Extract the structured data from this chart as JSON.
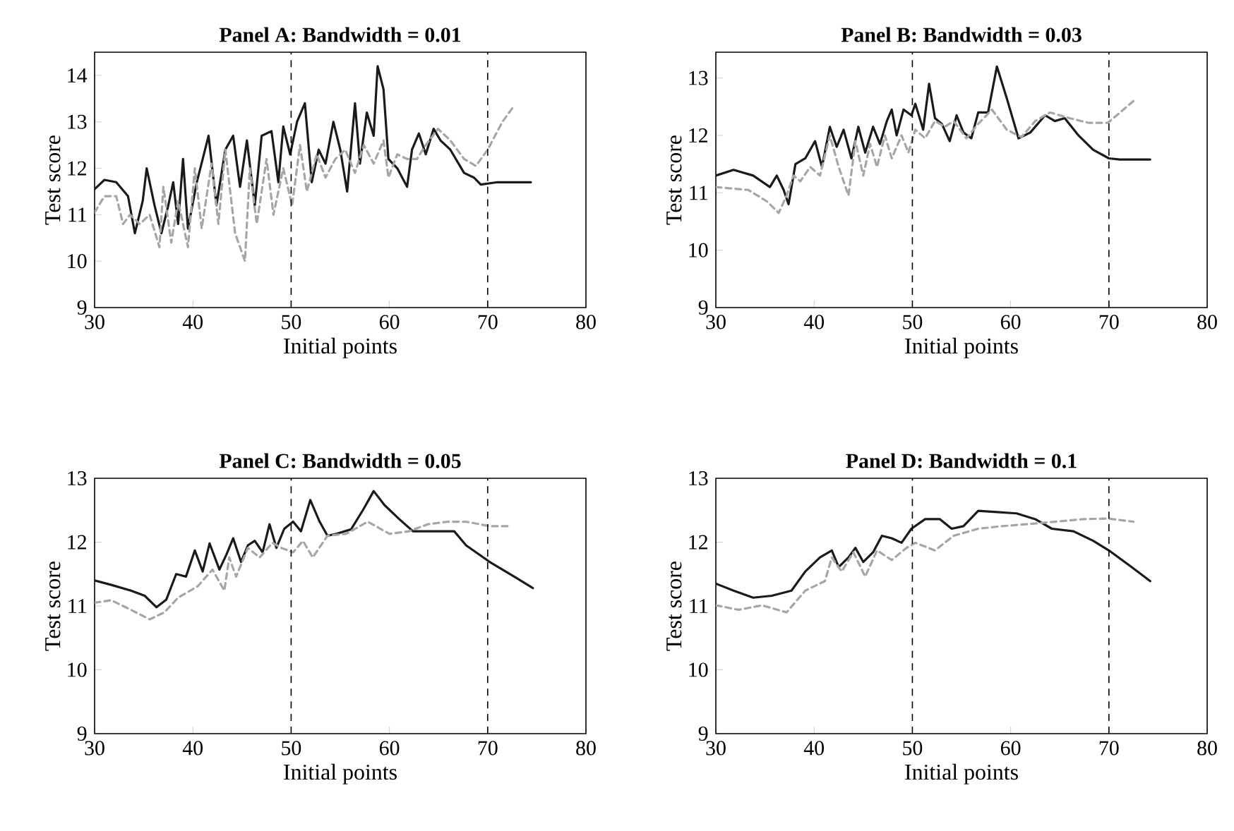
{
  "chart_data": [
    {
      "type": "line",
      "title": "Panel A: Bandwidth = 0.01",
      "xlabel": "Initial points",
      "ylabel": "Test score",
      "xlim": [
        30,
        80
      ],
      "ylim": [
        9,
        14.5
      ],
      "xticks": [
        30,
        40,
        50,
        60,
        70,
        80
      ],
      "yticks": [
        9,
        10,
        11,
        12,
        13,
        14
      ],
      "ref_lines": [
        {
          "axis": "x",
          "value": 50,
          "line_style": "dashed"
        },
        {
          "axis": "x",
          "value": 70,
          "line_style": "dashed"
        }
      ],
      "series": [
        {
          "color": "#1a1a1a",
          "line_style": "solid",
          "x": [
            30,
            31,
            32.2,
            33.4,
            34.1,
            34.9,
            35.3,
            36.1,
            36.8,
            37.5,
            38,
            38.5,
            39,
            39.5,
            40.4,
            41.6,
            42.4,
            43.3,
            44.1,
            44.8,
            45.5,
            46.3,
            47,
            48,
            48.7,
            49.2,
            49.9,
            50.6,
            51.4,
            52.1,
            52.8,
            53.5,
            54.3,
            55,
            55.7,
            56.5,
            57,
            57.7,
            58.4,
            58.8,
            59.4,
            59.9,
            60.8,
            61.8,
            62.3,
            63,
            63.7,
            64.5,
            65.2,
            66.2,
            67.6,
            68.6,
            69.3,
            71,
            74.4
          ],
          "values": [
            11.55,
            11.75,
            11.7,
            11.4,
            10.6,
            11.3,
            12.0,
            11.2,
            10.6,
            11.2,
            11.7,
            10.8,
            12.2,
            10.7,
            11.7,
            12.7,
            11.2,
            12.4,
            12.7,
            11.6,
            12.6,
            11.2,
            12.7,
            12.8,
            11.7,
            12.9,
            12.3,
            13.0,
            13.4,
            11.7,
            12.4,
            12.1,
            13.0,
            12.4,
            11.5,
            13.4,
            12.1,
            13.2,
            12.7,
            14.2,
            13.7,
            12.2,
            12.0,
            11.6,
            12.4,
            12.75,
            12.3,
            12.85,
            12.6,
            12.4,
            11.9,
            11.8,
            11.65,
            11.7,
            11.7
          ]
        },
        {
          "color": "#a6a6a6",
          "line_style": "dashed",
          "x": [
            30,
            31,
            32.2,
            32.9,
            33.6,
            34.6,
            35.6,
            36.6,
            37,
            37.8,
            38.5,
            39.5,
            40.2,
            40.9,
            41.9,
            42.6,
            43.3,
            44.3,
            45.3,
            45.8,
            46.5,
            47.5,
            48.2,
            49.2,
            50.1,
            50.9,
            51.6,
            52.6,
            53.5,
            54.5,
            55.5,
            56.5,
            57.4,
            58.4,
            59.4,
            59.9,
            60.8,
            61.8,
            62.8,
            63.7,
            64.95,
            66.2,
            67.6,
            68.8,
            70,
            71.5,
            72.7
          ],
          "values": [
            11.05,
            11.4,
            11.4,
            10.8,
            11.0,
            10.8,
            11.0,
            10.3,
            11.6,
            10.4,
            11.3,
            10.3,
            12.0,
            10.7,
            12.1,
            10.8,
            12.4,
            10.6,
            10.0,
            12.0,
            10.8,
            12.2,
            11.0,
            12.0,
            11.2,
            12.5,
            11.5,
            12.3,
            11.8,
            12.2,
            12.4,
            11.9,
            12.5,
            12.1,
            12.6,
            11.8,
            12.3,
            12.2,
            12.2,
            12.5,
            12.85,
            12.6,
            12.2,
            12.05,
            12.4,
            13.0,
            13.35
          ]
        }
      ]
    },
    {
      "type": "line",
      "title": "Panel B: Bandwidth = 0.03",
      "xlabel": "Initial points",
      "ylabel": "Test score",
      "xlim": [
        30,
        80
      ],
      "ylim": [
        9,
        13.45
      ],
      "xticks": [
        30,
        40,
        50,
        60,
        70,
        80
      ],
      "yticks": [
        9,
        10,
        11,
        12,
        13
      ],
      "ref_lines": [
        {
          "axis": "x",
          "value": 50,
          "line_style": "dashed"
        },
        {
          "axis": "x",
          "value": 70,
          "line_style": "dashed"
        }
      ],
      "series": [
        {
          "color": "#1a1a1a",
          "line_style": "solid",
          "x": [
            30,
            31.8,
            33.8,
            35.5,
            36.2,
            36.9,
            37.4,
            38.1,
            39.1,
            40.1,
            40.8,
            41.6,
            42.3,
            43,
            43.8,
            44.5,
            45.2,
            46,
            46.7,
            47.4,
            47.9,
            48.4,
            49.1,
            49.9,
            50.3,
            51.1,
            51.7,
            52.3,
            53,
            53.8,
            54.5,
            55.2,
            56,
            56.7,
            57.7,
            58.6,
            59.6,
            60.8,
            62,
            63.5,
            64.5,
            65.5,
            66.9,
            68.4,
            70,
            71.1,
            74.2
          ],
          "values": [
            11.3,
            11.4,
            11.3,
            11.1,
            11.3,
            11.05,
            10.8,
            11.5,
            11.6,
            11.9,
            11.45,
            12.15,
            11.8,
            12.1,
            11.6,
            12.15,
            11.7,
            12.15,
            11.85,
            12.25,
            12.45,
            12.0,
            12.45,
            12.35,
            12.55,
            12.1,
            12.9,
            12.3,
            12.2,
            11.9,
            12.35,
            12.05,
            11.95,
            12.4,
            12.4,
            13.2,
            12.65,
            11.95,
            12.05,
            12.35,
            12.25,
            12.3,
            12.0,
            11.75,
            11.6,
            11.58,
            11.58
          ]
        },
        {
          "color": "#a6a6a6",
          "line_style": "dashed",
          "x": [
            30,
            33.3,
            35.2,
            36.4,
            37.2,
            37.9,
            38.6,
            39.6,
            40.6,
            41.6,
            42.5,
            43.5,
            44.2,
            45,
            45.7,
            46.4,
            47.2,
            47.9,
            48.9,
            49.6,
            50.3,
            51.3,
            52.3,
            53.3,
            54.2,
            55.5,
            56.7,
            58.1,
            59.6,
            61.1,
            62.5,
            64,
            66,
            67.9,
            69.9,
            70.8,
            72.5
          ],
          "values": [
            11.1,
            11.05,
            10.85,
            10.65,
            10.95,
            11.3,
            11.2,
            11.45,
            11.3,
            12.0,
            11.45,
            10.95,
            11.9,
            11.3,
            11.85,
            11.45,
            12.0,
            11.6,
            12.0,
            11.7,
            12.1,
            11.95,
            12.25,
            12.15,
            12.25,
            11.95,
            12.2,
            12.45,
            12.1,
            11.97,
            12.25,
            12.4,
            12.3,
            12.22,
            12.22,
            12.35,
            12.6
          ]
        }
      ]
    },
    {
      "type": "line",
      "title": "Panel C: Bandwidth = 0.05",
      "xlabel": "Initial points",
      "ylabel": "Test score",
      "xlim": [
        30,
        80
      ],
      "ylim": [
        9,
        13
      ],
      "xticks": [
        30,
        40,
        50,
        60,
        70,
        80
      ],
      "yticks": [
        9,
        10,
        11,
        12,
        13
      ],
      "ref_lines": [
        {
          "axis": "x",
          "value": 50,
          "line_style": "dashed"
        },
        {
          "axis": "x",
          "value": 70,
          "line_style": "dashed"
        }
      ],
      "series": [
        {
          "color": "#1a1a1a",
          "line_style": "solid",
          "x": [
            30,
            31.7,
            33.7,
            35.1,
            36.3,
            37.3,
            38.3,
            39.3,
            40.2,
            41,
            41.7,
            42.7,
            43.4,
            44.1,
            44.9,
            45.6,
            46.3,
            47.1,
            47.8,
            48.5,
            49.3,
            50.2,
            51,
            51.95,
            52.9,
            53.7,
            54.6,
            56.1,
            57.3,
            58.4,
            59.5,
            61,
            62.4,
            63.9,
            66.6,
            67.8,
            70.2,
            72.7,
            74.6
          ],
          "values": [
            11.4,
            11.33,
            11.24,
            11.16,
            10.98,
            11.1,
            11.5,
            11.46,
            11.87,
            11.54,
            11.98,
            11.57,
            11.8,
            12.06,
            11.69,
            11.95,
            12.02,
            11.84,
            12.28,
            11.91,
            12.21,
            12.32,
            12.17,
            12.66,
            12.32,
            12.1,
            12.13,
            12.2,
            12.5,
            12.8,
            12.58,
            12.36,
            12.17,
            12.17,
            12.17,
            11.95,
            11.69,
            11.46,
            11.28
          ]
        },
        {
          "color": "#a6a6a6",
          "line_style": "dashed",
          "x": [
            30,
            31.7,
            33.7,
            35.6,
            37.1,
            38.5,
            40.5,
            42,
            43.2,
            43.7,
            44.4,
            45.6,
            46.8,
            48.1,
            49,
            50.2,
            51.2,
            52.2,
            53.7,
            55.6,
            57.8,
            60,
            62,
            63.9,
            65.9,
            67.8,
            70.2,
            72.4
          ],
          "values": [
            11.05,
            11.09,
            10.94,
            10.79,
            10.9,
            11.13,
            11.31,
            11.57,
            11.24,
            11.76,
            11.46,
            11.91,
            11.76,
            11.99,
            11.91,
            11.84,
            12.02,
            11.76,
            12.1,
            12.13,
            12.32,
            12.13,
            12.17,
            12.28,
            12.32,
            12.32,
            12.25,
            12.25
          ]
        }
      ]
    },
    {
      "type": "line",
      "title": "Panel D: Bandwidth = 0.1",
      "xlabel": "Initial points",
      "ylabel": "Test score",
      "xlim": [
        30,
        80
      ],
      "ylim": [
        9,
        13
      ],
      "xticks": [
        30,
        40,
        50,
        60,
        70,
        80
      ],
      "yticks": [
        9,
        10,
        11,
        12,
        13
      ],
      "ref_lines": [
        {
          "axis": "x",
          "value": 50,
          "line_style": "dashed"
        },
        {
          "axis": "x",
          "value": 70,
          "line_style": "dashed"
        }
      ],
      "series": [
        {
          "color": "#1a1a1a",
          "line_style": "solid",
          "x": [
            30,
            31.8,
            33.8,
            35.7,
            37.7,
            39.1,
            40.6,
            41.8,
            42.5,
            43.5,
            44.2,
            45,
            46,
            46.9,
            47.9,
            48.9,
            49.9,
            51.3,
            52.8,
            54,
            55.2,
            56.7,
            58.6,
            60.6,
            62.5,
            64.2,
            66.4,
            68.4,
            70,
            72.3,
            74.2
          ],
          "values": [
            11.35,
            11.24,
            11.13,
            11.16,
            11.24,
            11.54,
            11.76,
            11.87,
            11.61,
            11.76,
            11.91,
            11.69,
            11.84,
            12.1,
            12.06,
            11.99,
            12.21,
            12.36,
            12.36,
            12.21,
            12.25,
            12.49,
            12.47,
            12.45,
            12.36,
            12.21,
            12.17,
            12.02,
            11.87,
            11.61,
            11.39
          ]
        },
        {
          "color": "#a6a6a6",
          "line_style": "dashed",
          "x": [
            30,
            32.3,
            34.7,
            37.2,
            39.1,
            41.1,
            41.8,
            42.8,
            44,
            45.2,
            46.4,
            47.9,
            49.4,
            50.3,
            52.3,
            54.2,
            56.7,
            59.1,
            61.6,
            64.5,
            67.4,
            69.9,
            72.5
          ],
          "values": [
            11.01,
            10.94,
            11.01,
            10.9,
            11.24,
            11.39,
            11.76,
            11.54,
            11.84,
            11.46,
            11.87,
            11.72,
            11.91,
            11.99,
            11.87,
            12.1,
            12.21,
            12.25,
            12.28,
            12.32,
            12.36,
            12.37,
            12.32
          ]
        }
      ]
    }
  ]
}
